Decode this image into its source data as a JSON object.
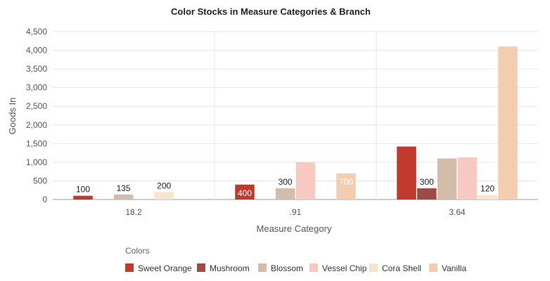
{
  "chart_data": {
    "type": "bar",
    "title": "Color Stocks in Measure Categories & Branch",
    "xlabel": "Measure Category",
    "ylabel": "Goods In",
    "ylim": [
      0,
      4500
    ],
    "yticks": [
      0,
      500,
      1000,
      1500,
      2000,
      2500,
      3000,
      3500,
      4000,
      4500
    ],
    "ytick_labels": [
      "0",
      "500",
      "1,000",
      "1,500",
      "2,000",
      "2,500",
      "3,000",
      "3,500",
      "4,000",
      "4,500"
    ],
    "categories": [
      "18.2",
      ".91",
      "3.64"
    ],
    "legend_title": "Colors",
    "legend_position": "bottom",
    "grid": true,
    "series": [
      {
        "name": "Sweet Orange",
        "color": "#C0392B",
        "values": [
          100,
          400,
          1420
        ],
        "labels": [
          "100",
          "400",
          ""
        ]
      },
      {
        "name": "Mushroom",
        "color": "#9E4B44",
        "values": [
          null,
          null,
          300
        ],
        "labels": [
          "",
          "",
          "300"
        ]
      },
      {
        "name": "Blossom",
        "color": "#D4BCAA",
        "values": [
          135,
          300,
          1100
        ],
        "labels": [
          "135",
          "300",
          ""
        ]
      },
      {
        "name": "Vessel Chip",
        "color": "#F7C9C0",
        "values": [
          null,
          1000,
          1130
        ],
        "labels": [
          "",
          "",
          ""
        ]
      },
      {
        "name": "Cora Shell",
        "color": "#F6E5CC",
        "values": [
          200,
          null,
          120
        ],
        "labels": [
          "200",
          "",
          "120"
        ]
      },
      {
        "name": "Vanilla",
        "color": "#F2CDB0",
        "values": [
          null,
          700,
          4100
        ],
        "labels": [
          "",
          "700",
          ""
        ]
      }
    ]
  }
}
